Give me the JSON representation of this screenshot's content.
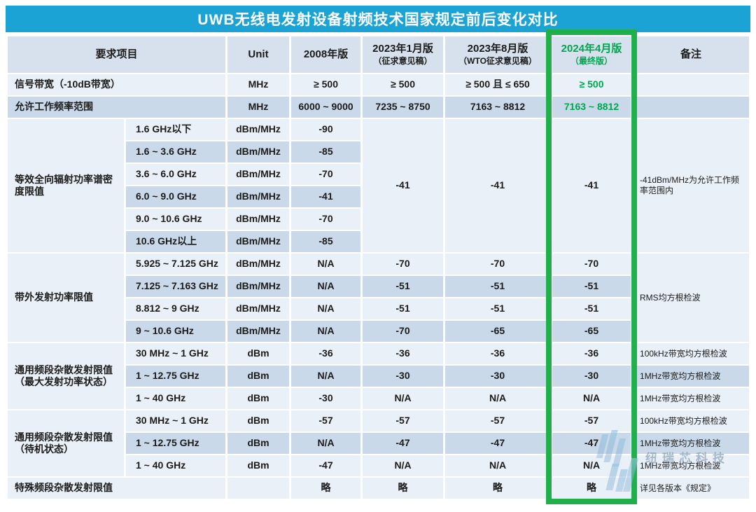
{
  "title": "UWB无线电发射设备射频技术国家规定前后变化对比",
  "header": {
    "item": "要求项目",
    "unit": "Unit",
    "v2008": "2008年版",
    "v2023_01": "2023年1月版",
    "v2023_01_sub": "（征求意见稿）",
    "v2023_08": "2023年8月版",
    "v2023_08_sub": "（WTO征求意见稿）",
    "v2024_04": "2024年4月版",
    "v2024_04_sub": "（最终版）",
    "remark": "备注"
  },
  "colors": {
    "title_bar_blue": "#1ca3d6",
    "highlight_border_green": "#1fb04c",
    "final_version_text_green": "#00a550",
    "changed_cell_orange": "#f4a182",
    "header_bg": "#d7e1ed",
    "row_light": "#eaf0f8",
    "row_dark": "#c9d9e9"
  },
  "watermark": {
    "text": "纽瑞芯科技",
    "subtext": "NewRadio Tech"
  },
  "table": {
    "rows": [
      {
        "shade": "light",
        "cells": [
          {
            "t": "信号带宽（-10dB带宽）",
            "cs": 2,
            "al": "left",
            "name": "row-label"
          },
          {
            "t": "MHz"
          },
          {
            "t": "≥ 500"
          },
          {
            "t": "≥ 500"
          },
          {
            "t": "≥ 500 且 ≤ 650",
            "bg": "orange"
          },
          {
            "t": "≥ 500",
            "bg": "orange",
            "fg": "green"
          },
          {
            "t": "",
            "cls": "remark",
            "al": "left"
          }
        ]
      },
      {
        "shade": "dark",
        "cells": [
          {
            "t": "允许工作频率范围",
            "cs": 2,
            "al": "left",
            "name": "row-label"
          },
          {
            "t": "MHz"
          },
          {
            "t": "6000 ~ 9000"
          },
          {
            "t": "7235 ~ 8750",
            "bg": "orange"
          },
          {
            "t": "7163 ~ 8812",
            "bg": "orange"
          },
          {
            "t": "7163 ~ 8812",
            "fg": "green"
          },
          {
            "t": "",
            "cls": "remark",
            "al": "left"
          }
        ]
      },
      {
        "shade": "light",
        "cells": [
          {
            "t": "等效全向辐射功率谱密度限值",
            "rs": 6,
            "bg": "group",
            "al": "left",
            "name": "group-label"
          },
          {
            "t": "1.6 GHz以下",
            "al": "left",
            "cls": "sub-label",
            "name": "sub-label"
          },
          {
            "t": "dBm/MHz"
          },
          {
            "t": "-90"
          },
          {
            "t": "-41",
            "rs": 6,
            "bg": "orangetall"
          },
          {
            "t": "-41",
            "rs": 6,
            "bg": "merge"
          },
          {
            "t": "-41",
            "rs": 6,
            "bg": "merge"
          },
          {
            "t": "-41dBm/MHz为允许工作频率范围内",
            "rs": 6,
            "bg": "merge",
            "cls": "remark",
            "al": "left"
          }
        ]
      },
      {
        "shade": "dark",
        "cells": [
          {
            "t": "1.6 ~ 3.6 GHz",
            "al": "left",
            "cls": "sub-label",
            "name": "sub-label"
          },
          {
            "t": "dBm/MHz"
          },
          {
            "t": "-85"
          }
        ]
      },
      {
        "shade": "light",
        "cells": [
          {
            "t": "3.6 ~ 6.0 GHz",
            "al": "left",
            "cls": "sub-label",
            "name": "sub-label"
          },
          {
            "t": "dBm/MHz"
          },
          {
            "t": "-70"
          }
        ]
      },
      {
        "shade": "dark",
        "cells": [
          {
            "t": "6.0 ~ 9.0 GHz",
            "al": "left",
            "cls": "sub-label",
            "name": "sub-label"
          },
          {
            "t": "dBm/MHz"
          },
          {
            "t": "-41"
          }
        ]
      },
      {
        "shade": "light",
        "cells": [
          {
            "t": "9.0 ~ 10.6 GHz",
            "al": "left",
            "cls": "sub-label",
            "name": "sub-label"
          },
          {
            "t": "dBm/MHz"
          },
          {
            "t": "-70"
          }
        ]
      },
      {
        "shade": "dark",
        "cells": [
          {
            "t": "10.6 GHz以上",
            "al": "left",
            "cls": "sub-label",
            "name": "sub-label"
          },
          {
            "t": "dBm/MHz"
          },
          {
            "t": "-85"
          }
        ]
      },
      {
        "shade": "light",
        "cells": [
          {
            "t": "带外发射功率限值",
            "rs": 4,
            "bg": "group",
            "al": "left",
            "name": "group-label"
          },
          {
            "t": "5.925 ~ 7.125 GHz",
            "al": "left",
            "cls": "sub-label",
            "name": "sub-label"
          },
          {
            "t": "dBm/MHz"
          },
          {
            "t": "N/A"
          },
          {
            "t": "-70",
            "bg": "orange"
          },
          {
            "t": "-70"
          },
          {
            "t": "-70"
          },
          {
            "t": "RMS均方根检波",
            "rs": 4,
            "bg": "merge",
            "cls": "remark",
            "al": "left"
          }
        ]
      },
      {
        "shade": "dark",
        "cells": [
          {
            "t": "7.125 ~ 7.163 GHz",
            "al": "left",
            "cls": "sub-label",
            "name": "sub-label"
          },
          {
            "t": "dBm/MHz"
          },
          {
            "t": "N/A"
          },
          {
            "t": "-51",
            "bg": "orange"
          },
          {
            "t": "-51"
          },
          {
            "t": "-51"
          }
        ]
      },
      {
        "shade": "light",
        "cells": [
          {
            "t": "8.812 ~ 9 GHz",
            "al": "left",
            "cls": "sub-label",
            "name": "sub-label"
          },
          {
            "t": "dBm/MHz"
          },
          {
            "t": "N/A"
          },
          {
            "t": "-51",
            "bg": "orange"
          },
          {
            "t": "-51"
          },
          {
            "t": "-51"
          }
        ]
      },
      {
        "shade": "dark",
        "cells": [
          {
            "t": "9 ~ 10.6 GHz",
            "al": "left",
            "cls": "sub-label",
            "name": "sub-label"
          },
          {
            "t": "dBm/MHz"
          },
          {
            "t": "N/A"
          },
          {
            "t": "-70",
            "bg": "orange"
          },
          {
            "t": "-65",
            "bg": "orange"
          },
          {
            "t": "-65"
          }
        ]
      },
      {
        "shade": "light",
        "cells": [
          {
            "t": "通用频段杂散发射限值（最大发射功率状态）",
            "rs": 3,
            "bg": "group",
            "al": "left",
            "name": "group-label"
          },
          {
            "t": "30 MHz ~ 1 GHz",
            "al": "left",
            "cls": "sub-label",
            "name": "sub-label"
          },
          {
            "t": "dBm"
          },
          {
            "t": "-36"
          },
          {
            "t": "-36"
          },
          {
            "t": "-36"
          },
          {
            "t": "-36"
          },
          {
            "t": "100kHz带宽均方根检波",
            "cls": "remark",
            "al": "left"
          }
        ]
      },
      {
        "shade": "dark",
        "cells": [
          {
            "t": "1 ~ 12.75 GHz",
            "al": "left",
            "cls": "sub-label",
            "name": "sub-label"
          },
          {
            "t": "dBm"
          },
          {
            "t": "N/A"
          },
          {
            "t": "-30",
            "bg": "orange"
          },
          {
            "t": "-30"
          },
          {
            "t": "-30"
          },
          {
            "t": "1MHz带宽均方根检波",
            "cls": "remark",
            "al": "left"
          }
        ]
      },
      {
        "shade": "light",
        "cells": [
          {
            "t": "1 ~ 40 GHz",
            "al": "left",
            "cls": "sub-label",
            "name": "sub-label"
          },
          {
            "t": "dBm"
          },
          {
            "t": "-30"
          },
          {
            "t": "N/A",
            "bg": "orange"
          },
          {
            "t": "N/A"
          },
          {
            "t": "N/A"
          },
          {
            "t": "1MHz带宽均方根检波",
            "cls": "remark",
            "al": "left"
          }
        ]
      },
      {
        "shade": "light",
        "cells": [
          {
            "t": "通用频段杂散发射限值（待机状态）",
            "rs": 3,
            "bg": "group",
            "al": "left",
            "name": "group-label"
          },
          {
            "t": "30 MHz ~ 1 GHz",
            "al": "left",
            "cls": "sub-label",
            "name": "sub-label"
          },
          {
            "t": "dBm"
          },
          {
            "t": "-57"
          },
          {
            "t": "-57"
          },
          {
            "t": "-57"
          },
          {
            "t": "-57"
          },
          {
            "t": "100kHz带宽均方根检波",
            "cls": "remark",
            "al": "left"
          }
        ]
      },
      {
        "shade": "dark",
        "cells": [
          {
            "t": "1 ~ 12.75 GHz",
            "al": "left",
            "cls": "sub-label",
            "name": "sub-label"
          },
          {
            "t": "dBm"
          },
          {
            "t": "N/A"
          },
          {
            "t": "-47",
            "bg": "orange"
          },
          {
            "t": "-47"
          },
          {
            "t": "-47"
          },
          {
            "t": "1MHz带宽均方根检波",
            "cls": "remark",
            "al": "left"
          }
        ]
      },
      {
        "shade": "light",
        "cells": [
          {
            "t": "1 ~ 40 GHz",
            "al": "left",
            "cls": "sub-label",
            "name": "sub-label"
          },
          {
            "t": "dBm"
          },
          {
            "t": "-47"
          },
          {
            "t": "N/A",
            "bg": "orange"
          },
          {
            "t": "N/A"
          },
          {
            "t": "N/A"
          },
          {
            "t": "1MHz带宽均方根检波",
            "cls": "remark",
            "al": "left"
          }
        ]
      },
      {
        "shade": "light",
        "cells": [
          {
            "t": "特殊频段杂散发射限值",
            "cs": 2,
            "al": "left",
            "name": "row-label"
          },
          {
            "t": ""
          },
          {
            "t": "略"
          },
          {
            "t": "略"
          },
          {
            "t": "略"
          },
          {
            "t": "略"
          },
          {
            "t": "详见各版本《规定》",
            "cls": "remark",
            "al": "left"
          }
        ]
      }
    ]
  }
}
